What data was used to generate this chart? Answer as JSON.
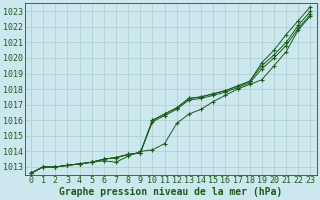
{
  "background_color": "#cce8ee",
  "grid_color": "#aacccc",
  "line_color": "#1a5c1a",
  "marker_color": "#1a5c1a",
  "text_color": "#1a5c1a",
  "xlabel": "Graphe pression niveau de la mer (hPa)",
  "xlabel_fontsize": 7,
  "tick_fontsize": 6,
  "ylim": [
    1012.5,
    1023.5
  ],
  "yticks": [
    1013,
    1014,
    1015,
    1016,
    1017,
    1018,
    1019,
    1020,
    1021,
    1022,
    1023
  ],
  "xlim": [
    -0.5,
    23.5
  ],
  "xticks": [
    0,
    1,
    2,
    3,
    4,
    5,
    6,
    7,
    8,
    9,
    10,
    11,
    12,
    13,
    14,
    15,
    16,
    17,
    18,
    19,
    20,
    21,
    22,
    23
  ],
  "series": [
    {
      "x": [
        0,
        1,
        2,
        3,
        4,
        5,
        6,
        7,
        8,
        9,
        10,
        11,
        12,
        13,
        14,
        15,
        16,
        17,
        18,
        19,
        20,
        21,
        22,
        23
      ],
      "y": [
        1012.6,
        1013.0,
        1013.0,
        1013.1,
        1013.2,
        1013.3,
        1013.5,
        1013.6,
        1013.8,
        1013.9,
        1016.0,
        1016.4,
        1016.8,
        1017.4,
        1017.5,
        1017.7,
        1017.9,
        1018.2,
        1018.5,
        1019.7,
        1020.5,
        1021.5,
        1022.4,
        1023.3
      ]
    },
    {
      "x": [
        0,
        1,
        2,
        3,
        4,
        5,
        6,
        7,
        8,
        9,
        10,
        11,
        12,
        13,
        14,
        15,
        16,
        17,
        18,
        19,
        20,
        21,
        22,
        23
      ],
      "y": [
        1012.6,
        1013.0,
        1013.0,
        1013.1,
        1013.2,
        1013.3,
        1013.5,
        1013.6,
        1013.8,
        1013.9,
        1016.0,
        1016.4,
        1016.8,
        1017.4,
        1017.5,
        1017.7,
        1017.9,
        1018.2,
        1018.5,
        1019.5,
        1020.2,
        1021.0,
        1022.1,
        1023.0
      ]
    },
    {
      "x": [
        0,
        1,
        2,
        3,
        4,
        5,
        6,
        7,
        8,
        9,
        10,
        11,
        12,
        13,
        14,
        15,
        16,
        17,
        18,
        19,
        20,
        21,
        22,
        23
      ],
      "y": [
        1012.6,
        1013.0,
        1013.0,
        1013.1,
        1013.2,
        1013.3,
        1013.5,
        1013.6,
        1013.8,
        1013.9,
        1015.9,
        1016.3,
        1016.7,
        1017.3,
        1017.4,
        1017.6,
        1017.8,
        1018.1,
        1018.4,
        1019.3,
        1020.0,
        1020.8,
        1021.9,
        1022.8
      ]
    },
    {
      "x": [
        0,
        1,
        2,
        3,
        4,
        5,
        6,
        7,
        8,
        9,
        10,
        11,
        12,
        13,
        14,
        15,
        16,
        17,
        18,
        19,
        20,
        21,
        22,
        23
      ],
      "y": [
        1012.6,
        1013.0,
        1013.0,
        1013.1,
        1013.2,
        1013.3,
        1013.4,
        1013.3,
        1013.7,
        1014.0,
        1014.1,
        1014.5,
        1015.8,
        1016.4,
        1016.7,
        1017.2,
        1017.6,
        1018.0,
        1018.3,
        1018.6,
        1019.5,
        1020.4,
        1021.8,
        1022.7
      ]
    }
  ]
}
